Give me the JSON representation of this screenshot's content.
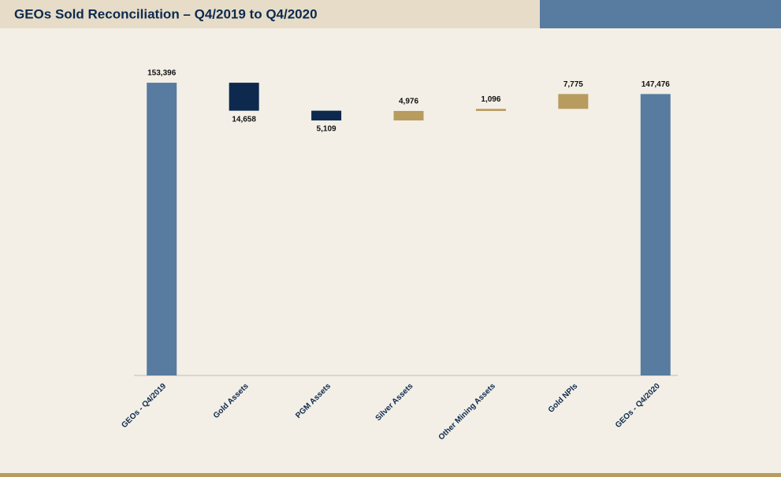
{
  "chart_data": {
    "type": "waterfall",
    "title": "GEOs Sold Reconciliation – Q4/2019 to Q4/2020",
    "categories": [
      "GEOs - Q4/2019",
      "Gold Assets",
      "PGM Assets",
      "Silver Assets",
      "Other Mining Assets",
      "Gold NPIs",
      "GEOs - Q4/2020"
    ],
    "measure": [
      "absolute",
      "relative",
      "relative",
      "relative",
      "relative",
      "relative",
      "total"
    ],
    "values": [
      153396,
      -14658,
      -5109,
      4976,
      1096,
      7775,
      147476
    ],
    "value_labels": [
      "153,396",
      "14,658",
      "5,109",
      "4,976",
      "1,096",
      "7,775",
      "147,476"
    ],
    "colors": [
      "#587ba0",
      "#0d2a4e",
      "#0d2a4e",
      "#b89b5e",
      "#b89b5e",
      "#b89b5e",
      "#587ba0"
    ],
    "ylim": [
      0,
      172000
    ]
  }
}
